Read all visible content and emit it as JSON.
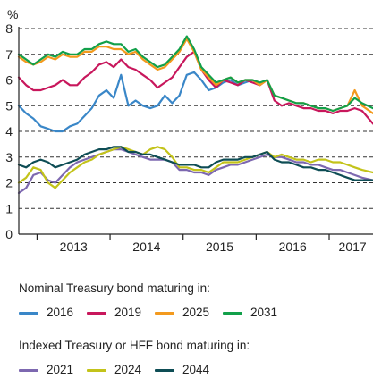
{
  "chart_data": {
    "type": "line",
    "unit_label": "%",
    "x_ticks": [
      "2013",
      "2014",
      "2015",
      "2016",
      "2017"
    ],
    "x_range": [
      2012.75,
      2017.6
    ],
    "ylim": [
      0,
      8
    ],
    "y_ticks": [
      0,
      1,
      2,
      3,
      4,
      5,
      6,
      7,
      8
    ],
    "grid": "horizontal-dashed",
    "legend": {
      "position": "bottom",
      "groups": [
        {
          "title": "Nominal Treasury bond maturing in:",
          "items": [
            "2016",
            "2019",
            "2025",
            "2031"
          ]
        },
        {
          "title": "Indexed Treasury or HFF bond maturing in:",
          "items": [
            "2021",
            "2024",
            "2044"
          ]
        }
      ]
    },
    "series": [
      {
        "name": "2016",
        "group": "nominal",
        "color": "#3a87c8",
        "x": [
          2012.75,
          2012.85,
          2012.95,
          2013.05,
          2013.15,
          2013.25,
          2013.35,
          2013.45,
          2013.55,
          2013.65,
          2013.75,
          2013.85,
          2013.95,
          2014.05,
          2014.15,
          2014.25,
          2014.35,
          2014.45,
          2014.55,
          2014.65,
          2014.75,
          2014.85,
          2014.95,
          2015.05,
          2015.15,
          2015.25,
          2015.35,
          2015.45,
          2015.55,
          2015.65,
          2015.75,
          2015.85,
          2015.95,
          2016.05
        ],
        "y": [
          5.0,
          4.7,
          4.5,
          4.2,
          4.1,
          4.0,
          4.0,
          4.2,
          4.3,
          4.6,
          4.9,
          5.4,
          5.6,
          5.3,
          6.2,
          5.0,
          5.2,
          5.0,
          4.9,
          5.0,
          5.4,
          5.1,
          5.4,
          6.2,
          6.3,
          6.0,
          5.6,
          5.7,
          5.9,
          6.0,
          5.8,
          5.9,
          6.0,
          5.9
        ]
      },
      {
        "name": "2019",
        "group": "nominal",
        "color": "#c8175c",
        "x": [
          2012.75,
          2012.85,
          2012.95,
          2013.05,
          2013.15,
          2013.25,
          2013.35,
          2013.45,
          2013.55,
          2013.65,
          2013.75,
          2013.85,
          2013.95,
          2014.05,
          2014.15,
          2014.25,
          2014.35,
          2014.45,
          2014.55,
          2014.65,
          2014.75,
          2014.85,
          2014.95,
          2015.05,
          2015.15,
          2015.25,
          2015.35,
          2015.45,
          2015.55,
          2015.65,
          2015.75,
          2015.85,
          2015.95,
          2016.05,
          2016.15,
          2016.25,
          2016.35,
          2016.45,
          2016.55,
          2016.65,
          2016.75,
          2016.85,
          2016.95,
          2017.05,
          2017.15,
          2017.25,
          2017.35,
          2017.45,
          2017.6
        ],
        "y": [
          6.1,
          5.8,
          5.6,
          5.6,
          5.7,
          5.8,
          6.0,
          5.8,
          5.8,
          6.1,
          6.3,
          6.6,
          6.7,
          6.5,
          6.8,
          6.5,
          6.4,
          6.2,
          6.0,
          5.7,
          5.9,
          6.1,
          6.5,
          6.9,
          7.1,
          6.4,
          6.0,
          5.7,
          6.0,
          5.9,
          5.8,
          6.0,
          5.9,
          5.8,
          6.0,
          5.2,
          5.0,
          5.1,
          5.0,
          4.9,
          4.9,
          4.8,
          4.8,
          4.7,
          4.8,
          4.8,
          4.9,
          4.8,
          4.3
        ]
      },
      {
        "name": "2025",
        "group": "nominal",
        "color": "#f39a1e",
        "x": [
          2012.75,
          2012.85,
          2012.95,
          2013.05,
          2013.15,
          2013.25,
          2013.35,
          2013.45,
          2013.55,
          2013.65,
          2013.75,
          2013.85,
          2013.95,
          2014.05,
          2014.15,
          2014.25,
          2014.35,
          2014.45,
          2014.55,
          2014.65,
          2014.75,
          2014.85,
          2014.95,
          2015.05,
          2015.15,
          2015.25,
          2015.35,
          2015.45,
          2015.55,
          2015.65,
          2015.75,
          2015.85,
          2015.95,
          2016.05,
          2016.15,
          2016.25,
          2016.35,
          2016.45,
          2016.55,
          2016.65,
          2016.75,
          2016.85,
          2016.95,
          2017.05,
          2017.15,
          2017.25,
          2017.35,
          2017.45,
          2017.6
        ],
        "y": [
          6.9,
          6.7,
          6.6,
          6.7,
          6.9,
          6.8,
          7.0,
          6.9,
          6.9,
          7.1,
          7.1,
          7.3,
          7.3,
          7.2,
          7.2,
          7.0,
          7.1,
          6.8,
          6.6,
          6.4,
          6.5,
          6.8,
          7.1,
          7.6,
          7.1,
          6.4,
          6.1,
          5.8,
          6.0,
          6.1,
          5.9,
          6.0,
          6.0,
          5.8,
          6.0,
          5.4,
          5.3,
          5.2,
          5.1,
          5.1,
          5.0,
          4.9,
          4.9,
          4.8,
          4.9,
          5.0,
          5.6,
          5.0,
          4.7
        ]
      },
      {
        "name": "2031",
        "group": "nominal",
        "color": "#12a04a",
        "x": [
          2012.75,
          2012.85,
          2012.95,
          2013.05,
          2013.15,
          2013.25,
          2013.35,
          2013.45,
          2013.55,
          2013.65,
          2013.75,
          2013.85,
          2013.95,
          2014.05,
          2014.15,
          2014.25,
          2014.35,
          2014.45,
          2014.55,
          2014.65,
          2014.75,
          2014.85,
          2014.95,
          2015.05,
          2015.15,
          2015.25,
          2015.35,
          2015.45,
          2015.55,
          2015.65,
          2015.75,
          2015.85,
          2015.95,
          2016.05,
          2016.15,
          2016.25,
          2016.35,
          2016.45,
          2016.55,
          2016.65,
          2016.75,
          2016.85,
          2016.95,
          2017.05,
          2017.15,
          2017.25,
          2017.35,
          2017.45,
          2017.6
        ],
        "y": [
          7.0,
          6.8,
          6.6,
          6.8,
          7.0,
          6.9,
          7.1,
          7.0,
          7.0,
          7.2,
          7.2,
          7.4,
          7.5,
          7.4,
          7.4,
          7.1,
          7.2,
          6.9,
          6.7,
          6.5,
          6.6,
          6.9,
          7.2,
          7.7,
          7.2,
          6.5,
          6.2,
          5.9,
          6.0,
          6.1,
          5.9,
          6.0,
          6.0,
          5.9,
          6.0,
          5.4,
          5.3,
          5.2,
          5.1,
          5.1,
          5.0,
          4.9,
          4.9,
          4.8,
          4.9,
          5.0,
          5.3,
          5.1,
          4.9
        ]
      },
      {
        "name": "2021",
        "group": "indexed",
        "color": "#7d68b0",
        "x": [
          2012.75,
          2012.85,
          2012.95,
          2013.05,
          2013.15,
          2013.25,
          2013.35,
          2013.45,
          2013.55,
          2013.65,
          2013.75,
          2013.85,
          2013.95,
          2014.05,
          2014.15,
          2014.25,
          2014.35,
          2014.45,
          2014.55,
          2014.65,
          2014.75,
          2014.85,
          2014.95,
          2015.05,
          2015.15,
          2015.25,
          2015.35,
          2015.45,
          2015.55,
          2015.65,
          2015.75,
          2015.85,
          2015.95,
          2016.05,
          2016.15,
          2016.25,
          2016.35,
          2016.45,
          2016.55,
          2016.65,
          2016.75,
          2016.85,
          2016.95,
          2017.05,
          2017.15,
          2017.25,
          2017.35,
          2017.45,
          2017.6
        ],
        "y": [
          1.6,
          1.8,
          2.3,
          2.4,
          2.1,
          2.0,
          2.3,
          2.6,
          2.8,
          2.9,
          3.0,
          3.1,
          3.2,
          3.3,
          3.3,
          3.2,
          3.1,
          3.0,
          2.9,
          2.9,
          2.9,
          2.8,
          2.5,
          2.5,
          2.4,
          2.4,
          2.3,
          2.5,
          2.6,
          2.7,
          2.7,
          2.8,
          2.9,
          3.0,
          3.1,
          3.0,
          3.0,
          2.9,
          2.8,
          2.8,
          2.7,
          2.7,
          2.6,
          2.5,
          2.5,
          2.4,
          2.3,
          2.2,
          2.1
        ]
      },
      {
        "name": "2024",
        "group": "indexed",
        "color": "#c3c31a",
        "x": [
          2012.75,
          2012.85,
          2012.95,
          2013.05,
          2013.15,
          2013.25,
          2013.35,
          2013.45,
          2013.55,
          2013.65,
          2013.75,
          2013.85,
          2013.95,
          2014.05,
          2014.15,
          2014.25,
          2014.35,
          2014.45,
          2014.55,
          2014.65,
          2014.75,
          2014.85,
          2014.95,
          2015.05,
          2015.15,
          2015.25,
          2015.35,
          2015.45,
          2015.55,
          2015.65,
          2015.75,
          2015.85,
          2015.95,
          2016.05,
          2016.15,
          2016.25,
          2016.35,
          2016.45,
          2016.55,
          2016.65,
          2016.75,
          2016.85,
          2016.95,
          2017.05,
          2017.15,
          2017.25,
          2017.35,
          2017.45,
          2017.6
        ],
        "y": [
          2.0,
          2.2,
          2.6,
          2.5,
          2.0,
          1.8,
          2.1,
          2.4,
          2.6,
          2.8,
          2.9,
          3.1,
          3.2,
          3.3,
          3.4,
          3.3,
          3.2,
          3.1,
          3.3,
          3.4,
          3.3,
          3.0,
          2.6,
          2.6,
          2.5,
          2.5,
          2.4,
          2.6,
          2.8,
          2.8,
          2.8,
          2.9,
          3.0,
          3.1,
          3.2,
          3.0,
          3.1,
          3.0,
          2.9,
          2.9,
          2.8,
          2.9,
          2.9,
          2.8,
          2.8,
          2.7,
          2.6,
          2.5,
          2.4
        ]
      },
      {
        "name": "2044",
        "group": "indexed",
        "color": "#0e4d55",
        "x": [
          2012.75,
          2012.85,
          2012.95,
          2013.05,
          2013.15,
          2013.25,
          2013.35,
          2013.45,
          2013.55,
          2013.65,
          2013.75,
          2013.85,
          2013.95,
          2014.05,
          2014.15,
          2014.25,
          2014.35,
          2014.45,
          2014.55,
          2014.65,
          2014.75,
          2014.85,
          2014.95,
          2015.05,
          2015.15,
          2015.25,
          2015.35,
          2015.45,
          2015.55,
          2015.65,
          2015.75,
          2015.85,
          2015.95,
          2016.05,
          2016.15,
          2016.25,
          2016.35,
          2016.45,
          2016.55,
          2016.65,
          2016.75,
          2016.85,
          2016.95,
          2017.05,
          2017.15,
          2017.25,
          2017.35,
          2017.45,
          2017.6
        ],
        "y": [
          2.7,
          2.6,
          2.8,
          2.9,
          2.8,
          2.6,
          2.7,
          2.8,
          2.9,
          3.1,
          3.2,
          3.3,
          3.3,
          3.4,
          3.4,
          3.2,
          3.2,
          3.1,
          3.1,
          3.0,
          2.9,
          2.8,
          2.7,
          2.7,
          2.7,
          2.6,
          2.6,
          2.8,
          2.9,
          2.9,
          2.9,
          3.0,
          3.0,
          3.1,
          3.2,
          2.9,
          2.8,
          2.8,
          2.7,
          2.6,
          2.6,
          2.5,
          2.5,
          2.4,
          2.3,
          2.2,
          2.1,
          2.1,
          2.1
        ]
      }
    ]
  },
  "legend_text": {
    "nominal_title": "Nominal Treasury bond maturing in:",
    "indexed_title": "Indexed Treasury or HFF bond maturing in:"
  }
}
